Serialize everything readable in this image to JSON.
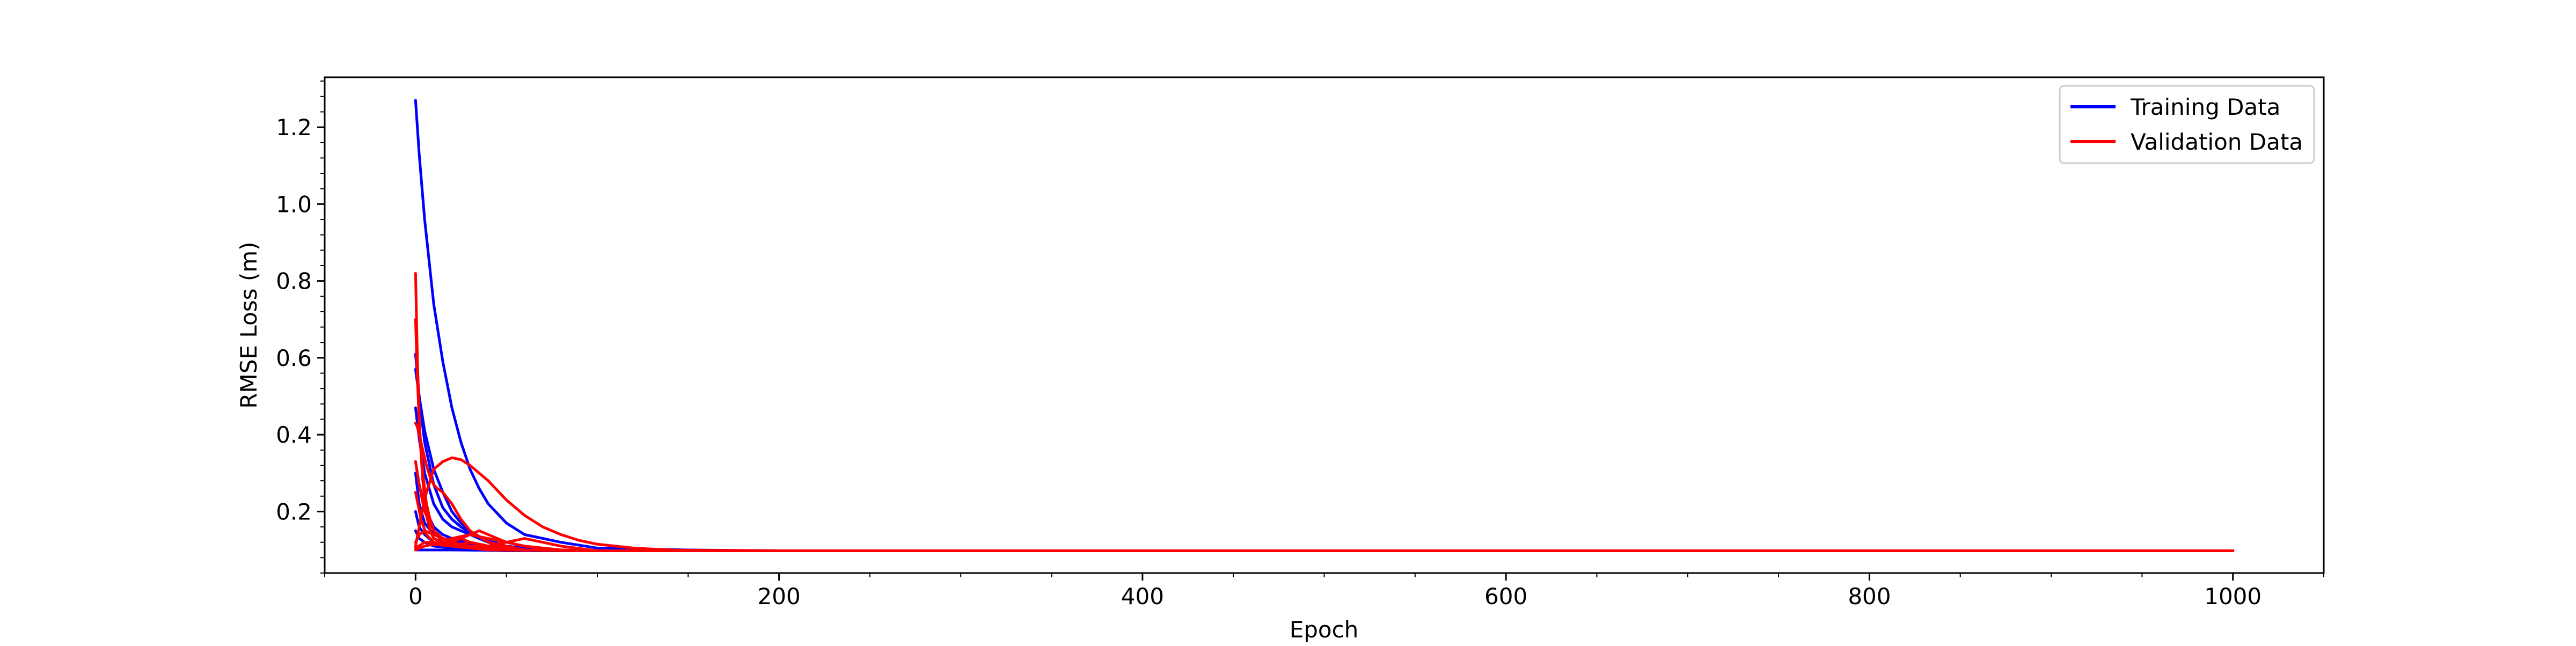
{
  "chart_data": {
    "type": "line",
    "title": "",
    "xlabel": "Epoch",
    "ylabel": "RMSE Loss (m)",
    "xlim": [
      -50,
      1050
    ],
    "ylim": [
      0.04,
      1.33
    ],
    "x_ticks": [
      0,
      200,
      400,
      600,
      800,
      1000
    ],
    "y_ticks": [
      0.2,
      0.4,
      0.6,
      0.8,
      1.0,
      1.2
    ],
    "x_minor_step": 50,
    "y_minor_step": 0.04,
    "grid": false,
    "legend": {
      "position": "top-right",
      "entries": [
        {
          "label": "Training Data",
          "color": "#0000ff"
        },
        {
          "label": "Validation Data",
          "color": "#ff0000"
        }
      ]
    },
    "series": [
      {
        "group": "training",
        "color": "#0000ff",
        "x": [
          0,
          2,
          5,
          10,
          15,
          20,
          25,
          30,
          35,
          40,
          50,
          60,
          80,
          100,
          150,
          200,
          300,
          500,
          1000
        ],
        "y": [
          1.27,
          1.13,
          0.96,
          0.74,
          0.59,
          0.47,
          0.38,
          0.31,
          0.26,
          0.22,
          0.17,
          0.14,
          0.12,
          0.105,
          0.1,
          0.098,
          0.098,
          0.098,
          0.098
        ]
      },
      {
        "group": "training",
        "color": "#0000ff",
        "x": [
          0,
          2,
          5,
          10,
          15,
          20,
          25,
          30,
          40,
          50,
          60,
          80,
          100,
          150,
          1000
        ],
        "y": [
          0.61,
          0.5,
          0.38,
          0.27,
          0.21,
          0.18,
          0.16,
          0.145,
          0.125,
          0.11,
          0.105,
          0.1,
          0.098,
          0.098,
          0.098
        ]
      },
      {
        "group": "training",
        "color": "#0000ff",
        "x": [
          0,
          2,
          5,
          10,
          15,
          20,
          25,
          30,
          35,
          40,
          50,
          60,
          100,
          1000
        ],
        "y": [
          0.57,
          0.5,
          0.41,
          0.31,
          0.25,
          0.2,
          0.17,
          0.15,
          0.13,
          0.12,
          0.105,
          0.1,
          0.098,
          0.098
        ]
      },
      {
        "group": "training",
        "color": "#0000ff",
        "x": [
          0,
          2,
          5,
          10,
          15,
          20,
          30,
          40,
          50,
          60,
          100,
          1000
        ],
        "y": [
          0.47,
          0.39,
          0.3,
          0.22,
          0.18,
          0.16,
          0.14,
          0.12,
          0.11,
          0.1,
          0.098,
          0.098
        ]
      },
      {
        "group": "training",
        "color": "#0000ff",
        "x": [
          0,
          2,
          5,
          10,
          15,
          20,
          25,
          30,
          40,
          50,
          100,
          1000
        ],
        "y": [
          0.33,
          0.27,
          0.21,
          0.16,
          0.14,
          0.13,
          0.12,
          0.115,
          0.105,
          0.1,
          0.098,
          0.098
        ]
      },
      {
        "group": "training",
        "color": "#0000ff",
        "x": [
          0,
          2,
          5,
          10,
          15,
          20,
          30,
          40,
          50,
          100,
          1000
        ],
        "y": [
          0.3,
          0.22,
          0.17,
          0.14,
          0.13,
          0.125,
          0.12,
          0.11,
          0.1,
          0.098,
          0.098
        ]
      },
      {
        "group": "training",
        "color": "#0000ff",
        "x": [
          0,
          2,
          5,
          10,
          15,
          20,
          30,
          40,
          60,
          100,
          1000
        ],
        "y": [
          0.2,
          0.16,
          0.14,
          0.12,
          0.115,
          0.11,
          0.105,
          0.1,
          0.098,
          0.098,
          0.098
        ]
      },
      {
        "group": "training",
        "color": "#0000ff",
        "x": [
          0,
          2,
          5,
          10,
          20,
          30,
          50,
          100,
          1000
        ],
        "y": [
          0.15,
          0.13,
          0.12,
          0.11,
          0.105,
          0.1,
          0.098,
          0.098,
          0.098
        ]
      },
      {
        "group": "training",
        "color": "#0000ff",
        "x": [
          0,
          5,
          10,
          20,
          40,
          60,
          100,
          1000
        ],
        "y": [
          0.1,
          0.1,
          0.1,
          0.1,
          0.099,
          0.098,
          0.098,
          0.098
        ]
      },
      {
        "group": "validation",
        "color": "#ff0000",
        "x": [
          0,
          1,
          2,
          3,
          4,
          5,
          6,
          8,
          10,
          15,
          20,
          30,
          40,
          50,
          60,
          80,
          100,
          1000
        ],
        "y": [
          0.82,
          0.6,
          0.45,
          0.35,
          0.28,
          0.23,
          0.19,
          0.15,
          0.13,
          0.12,
          0.13,
          0.14,
          0.13,
          0.12,
          0.11,
          0.1,
          0.098,
          0.098
        ]
      },
      {
        "group": "validation",
        "color": "#ff0000",
        "x": [
          0,
          1,
          2,
          4,
          6,
          8,
          10,
          15,
          20,
          30,
          40,
          60,
          100,
          1000
        ],
        "y": [
          0.7,
          0.55,
          0.43,
          0.3,
          0.22,
          0.18,
          0.15,
          0.12,
          0.11,
          0.12,
          0.11,
          0.1,
          0.098,
          0.098
        ]
      },
      {
        "group": "validation",
        "color": "#ff0000",
        "x": [
          0,
          2,
          4,
          6,
          8,
          10,
          15,
          20,
          25,
          30,
          40,
          50,
          60,
          70,
          80,
          90,
          100,
          120,
          140,
          160,
          200,
          250,
          300,
          1000
        ],
        "y": [
          0.11,
          0.16,
          0.21,
          0.25,
          0.28,
          0.31,
          0.33,
          0.34,
          0.335,
          0.32,
          0.28,
          0.23,
          0.19,
          0.16,
          0.14,
          0.125,
          0.115,
          0.105,
          0.1,
          0.099,
          0.098,
          0.098,
          0.098,
          0.098
        ]
      },
      {
        "group": "validation",
        "color": "#ff0000",
        "x": [
          0,
          1,
          2,
          4,
          6,
          8,
          10,
          12,
          15,
          20,
          25,
          30,
          40,
          60,
          100,
          1000
        ],
        "y": [
          0.43,
          0.42,
          0.4,
          0.36,
          0.32,
          0.29,
          0.27,
          0.26,
          0.25,
          0.22,
          0.18,
          0.15,
          0.12,
          0.1,
          0.098,
          0.098
        ]
      },
      {
        "group": "validation",
        "color": "#ff0000",
        "x": [
          0,
          2,
          5,
          10,
          15,
          20,
          25,
          30,
          35,
          40,
          45,
          50,
          60,
          80,
          100,
          1000
        ],
        "y": [
          0.33,
          0.27,
          0.2,
          0.15,
          0.13,
          0.125,
          0.13,
          0.14,
          0.15,
          0.14,
          0.13,
          0.12,
          0.11,
          0.1,
          0.098,
          0.098
        ]
      },
      {
        "group": "validation",
        "color": "#ff0000",
        "x": [
          0,
          3,
          6,
          10,
          15,
          20,
          25,
          30,
          40,
          50,
          60,
          70,
          80,
          100,
          1000
        ],
        "y": [
          0.25,
          0.18,
          0.14,
          0.12,
          0.115,
          0.12,
          0.13,
          0.12,
          0.11,
          0.12,
          0.13,
          0.12,
          0.11,
          0.098,
          0.098
        ]
      },
      {
        "group": "validation",
        "color": "#ff0000",
        "x": [
          0,
          2,
          5,
          10,
          15,
          20,
          30,
          40,
          50,
          60,
          80,
          100,
          1000
        ],
        "y": [
          0.12,
          0.14,
          0.15,
          0.14,
          0.13,
          0.12,
          0.11,
          0.11,
          0.105,
          0.1,
          0.099,
          0.098,
          0.098
        ]
      },
      {
        "group": "validation",
        "color": "#ff0000",
        "x": [
          0,
          5,
          10,
          20,
          30,
          40,
          60,
          100,
          1000
        ],
        "y": [
          0.1,
          0.11,
          0.115,
          0.11,
          0.105,
          0.1,
          0.099,
          0.098,
          0.098
        ]
      },
      {
        "group": "validation",
        "color": "#ff0000",
        "x": [
          0,
          5,
          10,
          20,
          30,
          50,
          100,
          1000
        ],
        "y": [
          0.105,
          0.12,
          0.12,
          0.115,
          0.11,
          0.1,
          0.098,
          0.098
        ]
      }
    ]
  }
}
